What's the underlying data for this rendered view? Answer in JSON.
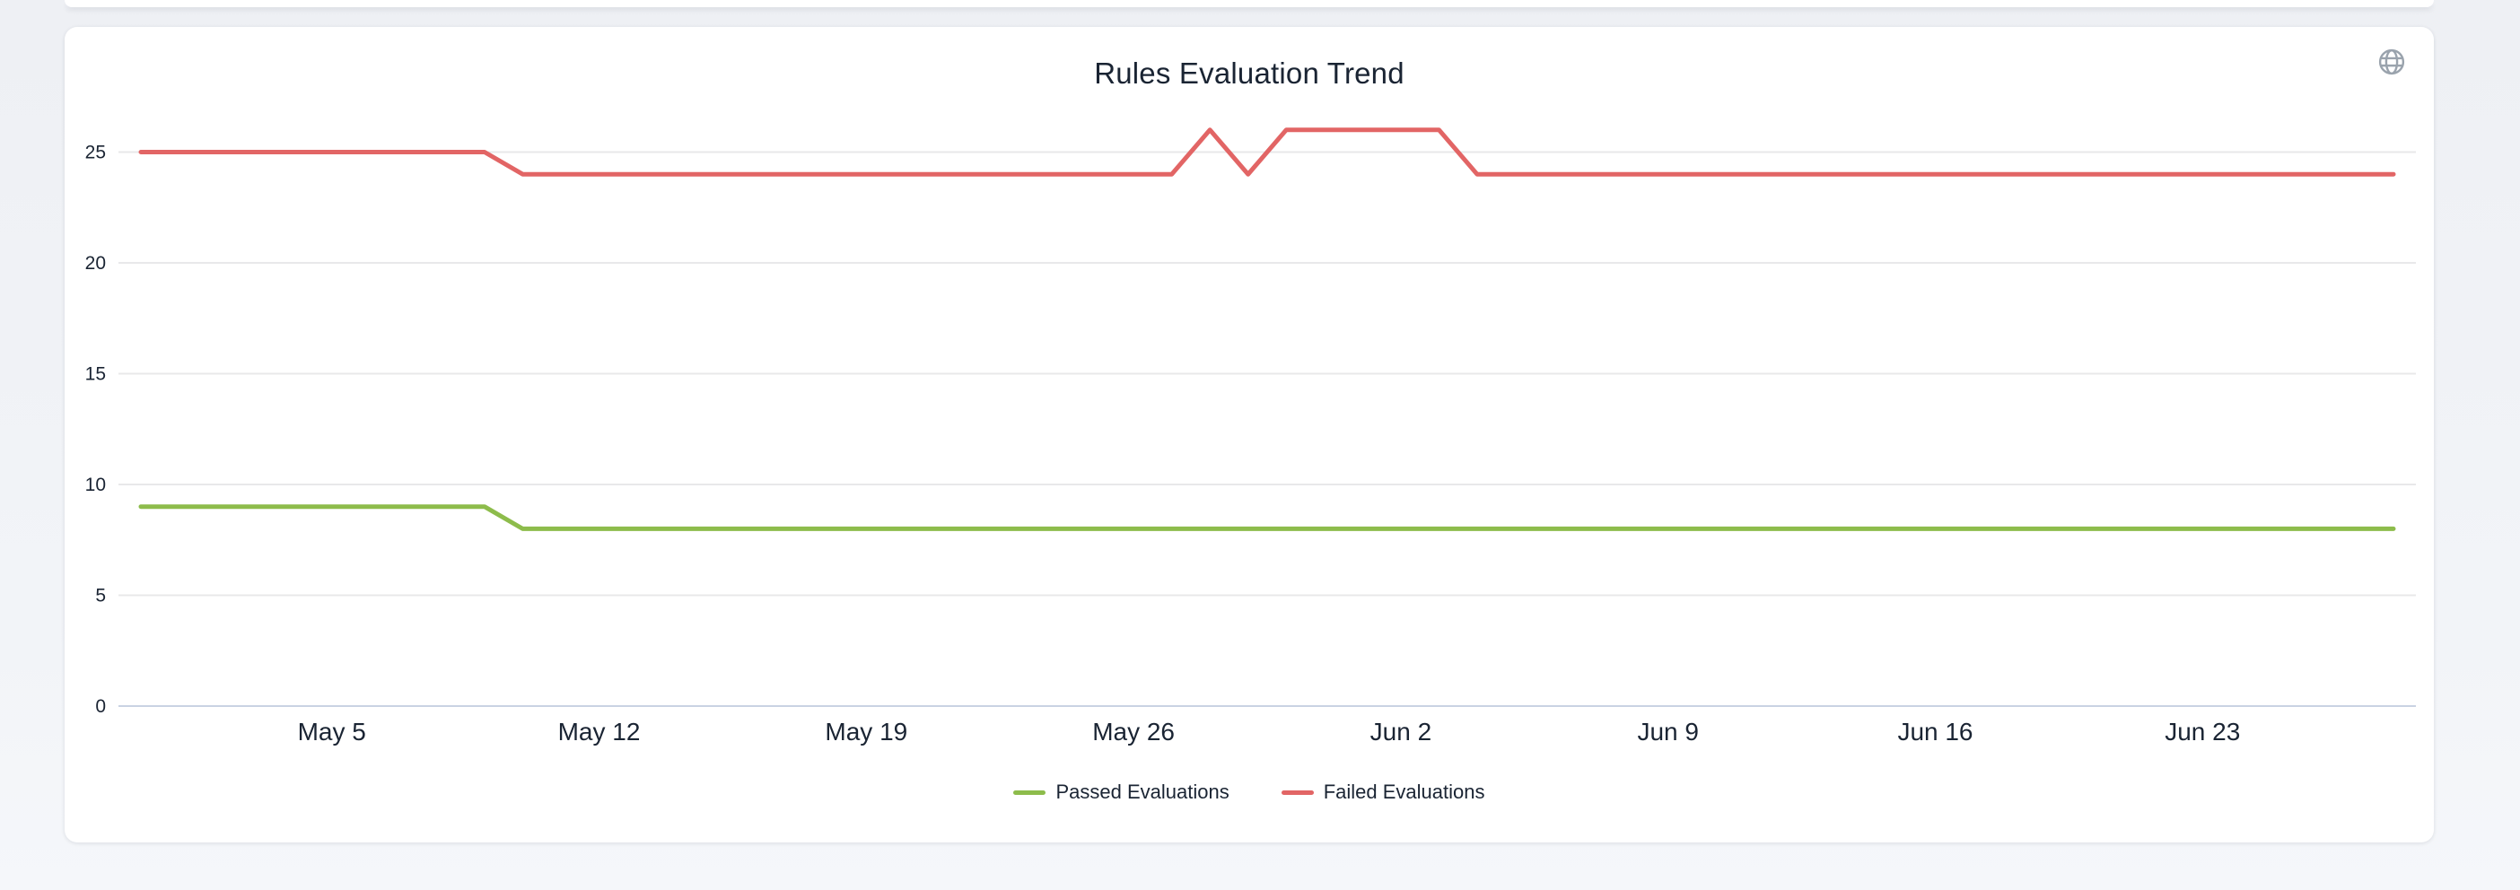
{
  "page": {
    "background": "#eef0f4"
  },
  "card": {
    "background": "#ffffff"
  },
  "icons": {
    "globe": "globe-icon",
    "globe_color": "#9aa3ad"
  },
  "chart_data": {
    "type": "line",
    "title": "Rules Evaluation Trend",
    "xlabel": "",
    "ylabel": "",
    "x_unit": "day",
    "x_count": 60,
    "x_ticks": [
      {
        "index": 5,
        "label": "May 5"
      },
      {
        "index": 12,
        "label": "May 12"
      },
      {
        "index": 19,
        "label": "May 19"
      },
      {
        "index": 26,
        "label": "May 26"
      },
      {
        "index": 33,
        "label": "Jun 2"
      },
      {
        "index": 40,
        "label": "Jun 9"
      },
      {
        "index": 47,
        "label": "Jun 16"
      },
      {
        "index": 54,
        "label": "Jun 23"
      }
    ],
    "y_ticks": [
      0,
      5,
      10,
      15,
      20,
      25
    ],
    "ylim": [
      0,
      27.5
    ],
    "grid": true,
    "legend_position": "bottom",
    "colors": {
      "grid": "#e8e8ea",
      "zero_line": "#c9d2e3",
      "text": "#1a2433"
    },
    "series": [
      {
        "name": "Passed Evaluations",
        "color": "#8dbc4b",
        "values": [
          9,
          9,
          9,
          9,
          9,
          9,
          9,
          9,
          9,
          9,
          8,
          8,
          8,
          8,
          8,
          8,
          8,
          8,
          8,
          8,
          8,
          8,
          8,
          8,
          8,
          8,
          8,
          8,
          8,
          8,
          8,
          8,
          8,
          8,
          8,
          8,
          8,
          8,
          8,
          8,
          8,
          8,
          8,
          8,
          8,
          8,
          8,
          8,
          8,
          8,
          8,
          8,
          8,
          8,
          8,
          8,
          8,
          8,
          8,
          8
        ]
      },
      {
        "name": "Failed Evaluations",
        "color": "#e26565",
        "values": [
          25,
          25,
          25,
          25,
          25,
          25,
          25,
          25,
          25,
          25,
          24,
          24,
          24,
          24,
          24,
          24,
          24,
          24,
          24,
          24,
          24,
          24,
          24,
          24,
          24,
          24,
          24,
          24,
          26,
          24,
          26,
          26,
          26,
          26,
          26,
          24,
          24,
          24,
          24,
          24,
          24,
          24,
          24,
          24,
          24,
          24,
          24,
          24,
          24,
          24,
          24,
          24,
          24,
          24,
          24,
          24,
          24,
          24,
          24,
          24
        ]
      }
    ]
  }
}
